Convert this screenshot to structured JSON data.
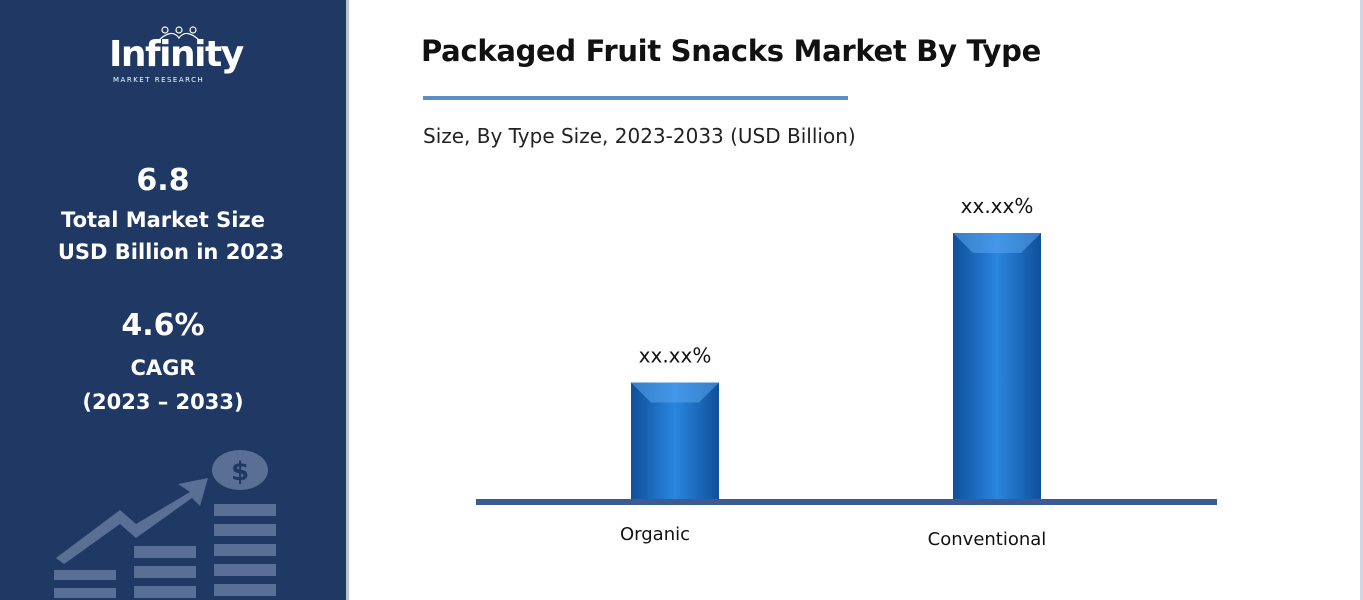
{
  "brand": {
    "logo_name": "Infinity",
    "logo_tagline": "MARKET RESEARCH"
  },
  "sidebar": {
    "market_size_value": "6.8",
    "market_size_label_line1": "Total Market Size",
    "market_size_label_line2": "USD Billion in 2023",
    "cagr_value": "4.6%",
    "cagr_label": "CAGR",
    "cagr_period": "(2023 – 2033)",
    "decor_icon": "growth-chart-dollar-icon"
  },
  "colors": {
    "sidebar_bg": "#1f3864",
    "bar_fill": "#1f6fc4",
    "axis_line": "#3b5b92",
    "title_rule": "#5b8fc4"
  },
  "chart_data": {
    "type": "bar",
    "title": "Packaged Fruit Snacks Market By Type",
    "subtitle": "Size, By Type Size, 2023-2033 (USD Billion)",
    "categories": [
      "Organic",
      "Conventional"
    ],
    "values": [
      44,
      100
    ],
    "data_labels": [
      "xx.xx%",
      "xx.xx%"
    ],
    "xlabel": "",
    "ylabel": "",
    "ylim": [
      0,
      100
    ],
    "grid": false,
    "legend": "none"
  }
}
